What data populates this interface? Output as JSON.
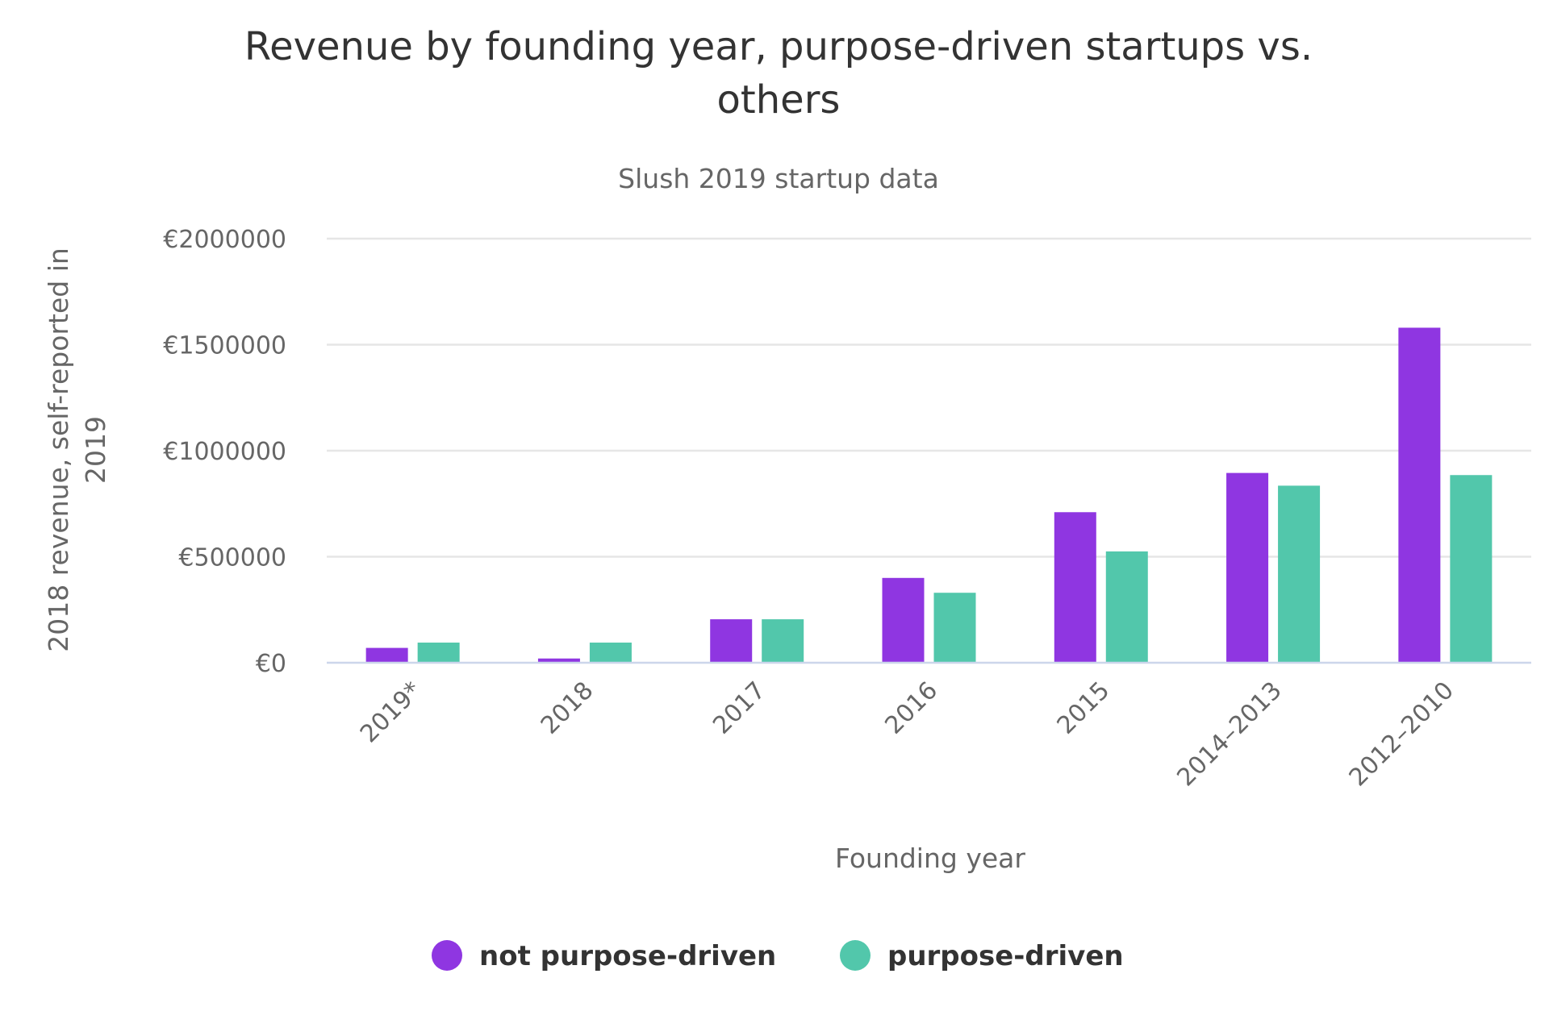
{
  "chart_data": {
    "type": "bar",
    "title": "Revenue by founding year, purpose-driven startups vs. others",
    "title_lines": [
      "Revenue by founding year, purpose-driven startups vs.",
      "others"
    ],
    "subtitle": "Slush 2019 startup data",
    "xlabel": "Founding year",
    "ylabel": "2018 revenue, self-reported in 2019",
    "ylabel_lines": [
      "2018 revenue, self-reported in",
      "2019"
    ],
    "categories": [
      "2019*",
      "2018",
      "2017",
      "2016",
      "2015",
      "2014–2013",
      "2012–2010"
    ],
    "ylim": [
      0,
      2000000
    ],
    "yticks": [
      0,
      500000,
      1000000,
      1500000,
      2000000
    ],
    "ytick_labels": [
      "€0",
      "€500000",
      "€1000000",
      "€1500000",
      "€2000000"
    ],
    "grid": true,
    "legend_position": "bottom-center",
    "series": [
      {
        "name": "not purpose-driven",
        "color": "#8f36e1",
        "values": [
          70000,
          20000,
          205000,
          400000,
          710000,
          895000,
          1580000
        ]
      },
      {
        "name": "purpose-driven",
        "color": "#52c7ab",
        "values": [
          95000,
          95000,
          205000,
          330000,
          525000,
          835000,
          885000
        ]
      }
    ]
  }
}
